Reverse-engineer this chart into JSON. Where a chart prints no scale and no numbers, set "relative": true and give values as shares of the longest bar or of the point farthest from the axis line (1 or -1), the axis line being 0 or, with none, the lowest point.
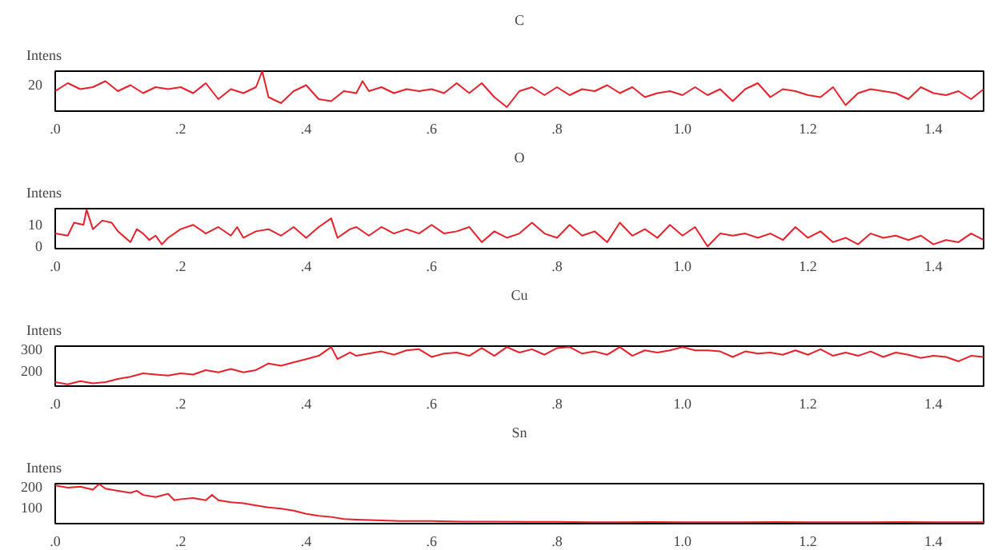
{
  "chart_data": [
    {
      "type": "line",
      "title": "C",
      "ylabel": "Intens",
      "relative": true,
      "annotations": [
        "20"
      ],
      "grid": false,
      "xlim": [
        0,
        1.48
      ],
      "xticks": [
        {
          "value": 0,
          "label": ".0"
        },
        {
          "value": 0.2,
          "label": ".2"
        },
        {
          "value": 0.4,
          "label": ".4"
        },
        {
          "value": 0.6,
          "label": ".6"
        },
        {
          "value": 0.8,
          "label": ".8"
        },
        {
          "value": 1.0,
          "label": "1.0"
        },
        {
          "value": 1.2,
          "label": "1.2"
        },
        {
          "value": 1.4,
          "label": "1.4"
        }
      ],
      "series": [
        {
          "color": "#e8202a",
          "x": [
            0,
            0.02,
            0.04,
            0.06,
            0.08,
            0.1,
            0.12,
            0.14,
            0.16,
            0.18,
            0.2,
            0.22,
            0.24,
            0.26,
            0.28,
            0.3,
            0.32,
            0.33,
            0.34,
            0.36,
            0.38,
            0.4,
            0.42,
            0.44,
            0.46,
            0.48,
            0.49,
            0.5,
            0.52,
            0.54,
            0.56,
            0.58,
            0.6,
            0.62,
            0.64,
            0.66,
            0.68,
            0.7,
            0.72,
            0.74,
            0.76,
            0.78,
            0.8,
            0.82,
            0.84,
            0.86,
            0.88,
            0.9,
            0.92,
            0.94,
            0.96,
            0.98,
            1.0,
            1.02,
            1.04,
            1.06,
            1.08,
            1.1,
            1.12,
            1.14,
            1.16,
            1.18,
            1.2,
            1.22,
            1.24,
            1.26,
            1.28,
            1.3,
            1.32,
            1.34,
            1.36,
            1.38,
            1.4,
            1.42,
            1.44,
            1.46,
            1.48
          ],
          "values": [
            0.5,
            0.7,
            0.55,
            0.6,
            0.75,
            0.5,
            0.65,
            0.45,
            0.6,
            0.55,
            0.6,
            0.45,
            0.7,
            0.3,
            0.55,
            0.45,
            0.6,
            1.0,
            0.35,
            0.2,
            0.5,
            0.65,
            0.3,
            0.25,
            0.5,
            0.45,
            0.75,
            0.5,
            0.6,
            0.45,
            0.55,
            0.5,
            0.55,
            0.45,
            0.7,
            0.45,
            0.7,
            0.35,
            0.1,
            0.5,
            0.6,
            0.4,
            0.6,
            0.4,
            0.55,
            0.5,
            0.65,
            0.45,
            0.6,
            0.35,
            0.45,
            0.5,
            0.4,
            0.6,
            0.4,
            0.55,
            0.25,
            0.55,
            0.7,
            0.35,
            0.55,
            0.5,
            0.4,
            0.35,
            0.6,
            0.15,
            0.45,
            0.55,
            0.5,
            0.45,
            0.3,
            0.6,
            0.45,
            0.4,
            0.5,
            0.3,
            0.55
          ]
        }
      ]
    },
    {
      "type": "line",
      "title": "O",
      "ylabel": "Intens",
      "grid": false,
      "ylim": [
        -1,
        17.5
      ],
      "yticks": [
        0,
        10
      ],
      "xlim": [
        0,
        1.48
      ],
      "xticks": [
        {
          "value": 0,
          "label": ".0"
        },
        {
          "value": 0.2,
          "label": ".2"
        },
        {
          "value": 0.4,
          "label": ".4"
        },
        {
          "value": 0.6,
          "label": ".6"
        },
        {
          "value": 0.8,
          "label": ".8"
        },
        {
          "value": 1.0,
          "label": "1.0"
        },
        {
          "value": 1.2,
          "label": "1.2"
        },
        {
          "value": 1.4,
          "label": "1.4"
        }
      ],
      "series": [
        {
          "color": "#e8202a",
          "x": [
            0,
            0.02,
            0.03,
            0.045,
            0.05,
            0.06,
            0.075,
            0.09,
            0.1,
            0.12,
            0.13,
            0.14,
            0.15,
            0.16,
            0.17,
            0.18,
            0.2,
            0.22,
            0.24,
            0.26,
            0.28,
            0.29,
            0.3,
            0.32,
            0.34,
            0.36,
            0.38,
            0.4,
            0.42,
            0.44,
            0.45,
            0.47,
            0.48,
            0.5,
            0.52,
            0.54,
            0.56,
            0.58,
            0.6,
            0.62,
            0.64,
            0.66,
            0.68,
            0.7,
            0.72,
            0.74,
            0.76,
            0.78,
            0.8,
            0.82,
            0.84,
            0.86,
            0.88,
            0.9,
            0.92,
            0.94,
            0.96,
            0.98,
            1.0,
            1.02,
            1.04,
            1.06,
            1.08,
            1.1,
            1.12,
            1.14,
            1.16,
            1.18,
            1.2,
            1.22,
            1.24,
            1.26,
            1.28,
            1.3,
            1.32,
            1.34,
            1.36,
            1.38,
            1.4,
            1.42,
            1.44,
            1.46,
            1.48
          ],
          "values": [
            6,
            5,
            11,
            10,
            17,
            8,
            12,
            11,
            7,
            2,
            8,
            6,
            3,
            5,
            1,
            4,
            8,
            10,
            6,
            9,
            5,
            9,
            4,
            7,
            8,
            5,
            9,
            4,
            9,
            13,
            4,
            8,
            9,
            5,
            9,
            6,
            8,
            6,
            10,
            6,
            7,
            9,
            2,
            7,
            4,
            6,
            11,
            6,
            4,
            10,
            5,
            7,
            2,
            11,
            5,
            8,
            4,
            10,
            5,
            9,
            0,
            6,
            5,
            6,
            4,
            6,
            3,
            9,
            4,
            7,
            2,
            4,
            1,
            6,
            4,
            5,
            3,
            5,
            1,
            3,
            2,
            6,
            3
          ]
        }
      ]
    },
    {
      "type": "line",
      "title": "Cu",
      "ylabel": "Intens",
      "grid": false,
      "ylim": [
        132,
        314
      ],
      "yticks": [
        200,
        300
      ],
      "xlim": [
        0,
        1.48
      ],
      "xticks": [
        {
          "value": 0,
          "label": ".0"
        },
        {
          "value": 0.2,
          "label": ".2"
        },
        {
          "value": 0.4,
          "label": ".4"
        },
        {
          "value": 0.6,
          "label": ".6"
        },
        {
          "value": 0.8,
          "label": ".8"
        },
        {
          "value": 1.0,
          "label": "1.0"
        },
        {
          "value": 1.2,
          "label": "1.2"
        },
        {
          "value": 1.4,
          "label": "1.4"
        }
      ],
      "series": [
        {
          "color": "#e8202a",
          "x": [
            0,
            0.02,
            0.04,
            0.06,
            0.08,
            0.1,
            0.12,
            0.14,
            0.16,
            0.18,
            0.2,
            0.22,
            0.24,
            0.26,
            0.28,
            0.3,
            0.32,
            0.34,
            0.36,
            0.38,
            0.4,
            0.42,
            0.44,
            0.45,
            0.47,
            0.48,
            0.5,
            0.52,
            0.54,
            0.56,
            0.58,
            0.6,
            0.62,
            0.64,
            0.66,
            0.68,
            0.7,
            0.72,
            0.74,
            0.76,
            0.78,
            0.8,
            0.82,
            0.84,
            0.86,
            0.88,
            0.9,
            0.92,
            0.94,
            0.96,
            0.98,
            1.0,
            1.02,
            1.04,
            1.06,
            1.08,
            1.1,
            1.12,
            1.14,
            1.16,
            1.18,
            1.2,
            1.22,
            1.24,
            1.26,
            1.28,
            1.3,
            1.32,
            1.34,
            1.36,
            1.38,
            1.4,
            1.42,
            1.44,
            1.46,
            1.48
          ],
          "values": [
            150,
            140,
            155,
            145,
            150,
            165,
            175,
            190,
            185,
            180,
            190,
            185,
            205,
            195,
            210,
            195,
            205,
            235,
            225,
            240,
            255,
            270,
            310,
            255,
            285,
            270,
            280,
            290,
            275,
            295,
            300,
            265,
            280,
            285,
            270,
            305,
            270,
            310,
            285,
            300,
            275,
            305,
            310,
            280,
            290,
            275,
            310,
            270,
            295,
            285,
            295,
            310,
            295,
            295,
            290,
            265,
            290,
            280,
            285,
            275,
            295,
            275,
            300,
            270,
            285,
            270,
            290,
            265,
            285,
            275,
            260,
            270,
            265,
            245,
            270,
            265
          ]
        }
      ]
    },
    {
      "type": "line",
      "title": "Sn",
      "ylabel": "Intens",
      "grid": false,
      "ylim": [
        23,
        214
      ],
      "yticks": [
        100,
        200
      ],
      "xlim": [
        0,
        1.48
      ],
      "xticks": [
        {
          "value": 0,
          "label": ".0"
        },
        {
          "value": 0.2,
          "label": ".2"
        },
        {
          "value": 0.4,
          "label": ".4"
        },
        {
          "value": 0.6,
          "label": ".6"
        },
        {
          "value": 0.8,
          "label": ".8"
        },
        {
          "value": 1.0,
          "label": "1.0"
        },
        {
          "value": 1.2,
          "label": "1.2"
        },
        {
          "value": 1.4,
          "label": "1.4"
        }
      ],
      "series": [
        {
          "color": "#e8202a",
          "x": [
            0,
            0.02,
            0.04,
            0.06,
            0.07,
            0.08,
            0.1,
            0.12,
            0.13,
            0.14,
            0.16,
            0.18,
            0.19,
            0.2,
            0.22,
            0.24,
            0.25,
            0.26,
            0.28,
            0.3,
            0.32,
            0.34,
            0.36,
            0.38,
            0.4,
            0.42,
            0.44,
            0.46,
            0.48,
            0.5,
            0.52,
            0.55,
            0.6,
            0.65,
            0.7,
            0.75,
            0.8,
            0.85,
            0.9,
            0.95,
            1.0,
            1.05,
            1.1,
            1.15,
            1.2,
            1.25,
            1.3,
            1.35,
            1.4,
            1.45,
            1.48
          ],
          "values": [
            205,
            195,
            200,
            185,
            212,
            190,
            180,
            170,
            180,
            160,
            150,
            165,
            135,
            140,
            145,
            135,
            160,
            135,
            125,
            120,
            110,
            100,
            95,
            85,
            70,
            60,
            55,
            45,
            42,
            40,
            38,
            35,
            35,
            33,
            33,
            32,
            32,
            30,
            30,
            31,
            30,
            30,
            30,
            31,
            30,
            30,
            30,
            31,
            30,
            30,
            30
          ]
        }
      ]
    }
  ]
}
